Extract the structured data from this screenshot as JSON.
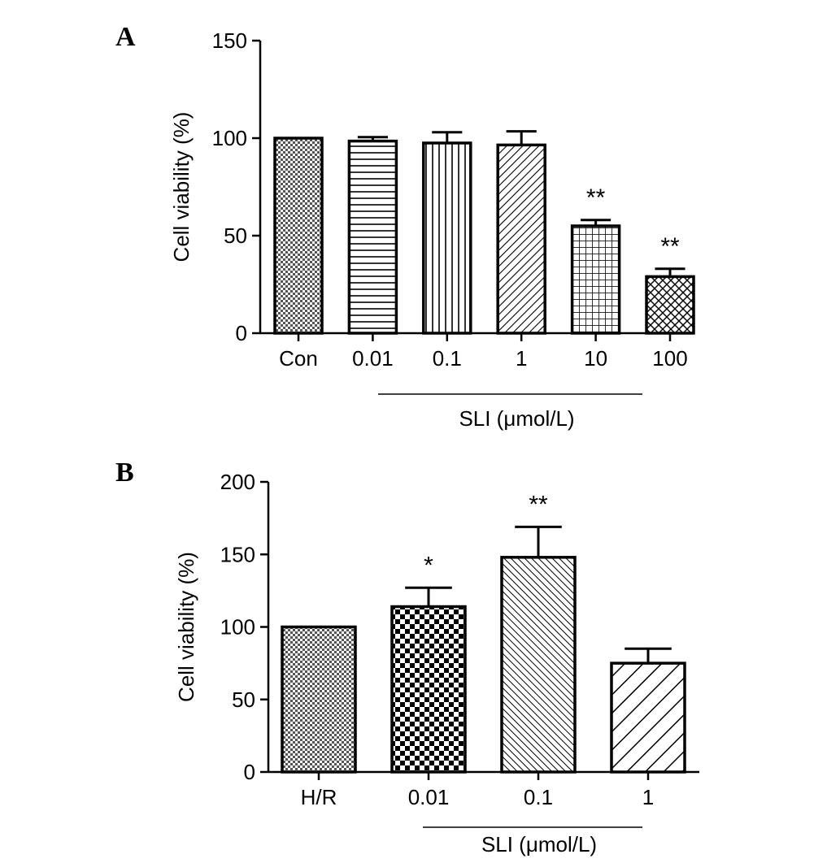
{
  "chart_data": [
    {
      "type": "bar",
      "panel": "A",
      "ylabel": "Cell viability (%)",
      "ylim": [
        0,
        150
      ],
      "yticks": [
        "0",
        "50",
        "100",
        "150"
      ],
      "categories": [
        "Con",
        "0.01",
        "0.1",
        "1",
        "10",
        "100"
      ],
      "values": [
        100,
        98.5,
        97.5,
        96.5,
        55,
        29
      ],
      "errors": [
        0,
        2,
        5.5,
        7,
        3,
        4
      ],
      "significance": [
        "",
        "",
        "",
        "",
        "**",
        "**"
      ],
      "patterns": [
        "checker-fine",
        "horizontal",
        "vertical",
        "diagonal",
        "grid",
        "diagonal-cross"
      ],
      "group_label": "SLI (μmol/L)",
      "group_start": 1,
      "group_end": 5
    },
    {
      "type": "bar",
      "panel": "B",
      "ylabel": "Cell viability (%)",
      "ylim": [
        0,
        200
      ],
      "yticks": [
        "0",
        "50",
        "100",
        "150",
        "200"
      ],
      "categories": [
        "H/R",
        "0.01",
        "0.1",
        "1"
      ],
      "values": [
        100,
        114,
        148,
        75
      ],
      "errors": [
        0,
        13,
        21,
        10
      ],
      "significance": [
        "",
        "*",
        "**",
        ""
      ],
      "patterns": [
        "checker-fine",
        "checker-coarse",
        "diagonal-dense",
        "diagonal-wide"
      ],
      "group_label": "SLI (μmol/L)",
      "group_start": 1,
      "group_end": 3
    }
  ]
}
